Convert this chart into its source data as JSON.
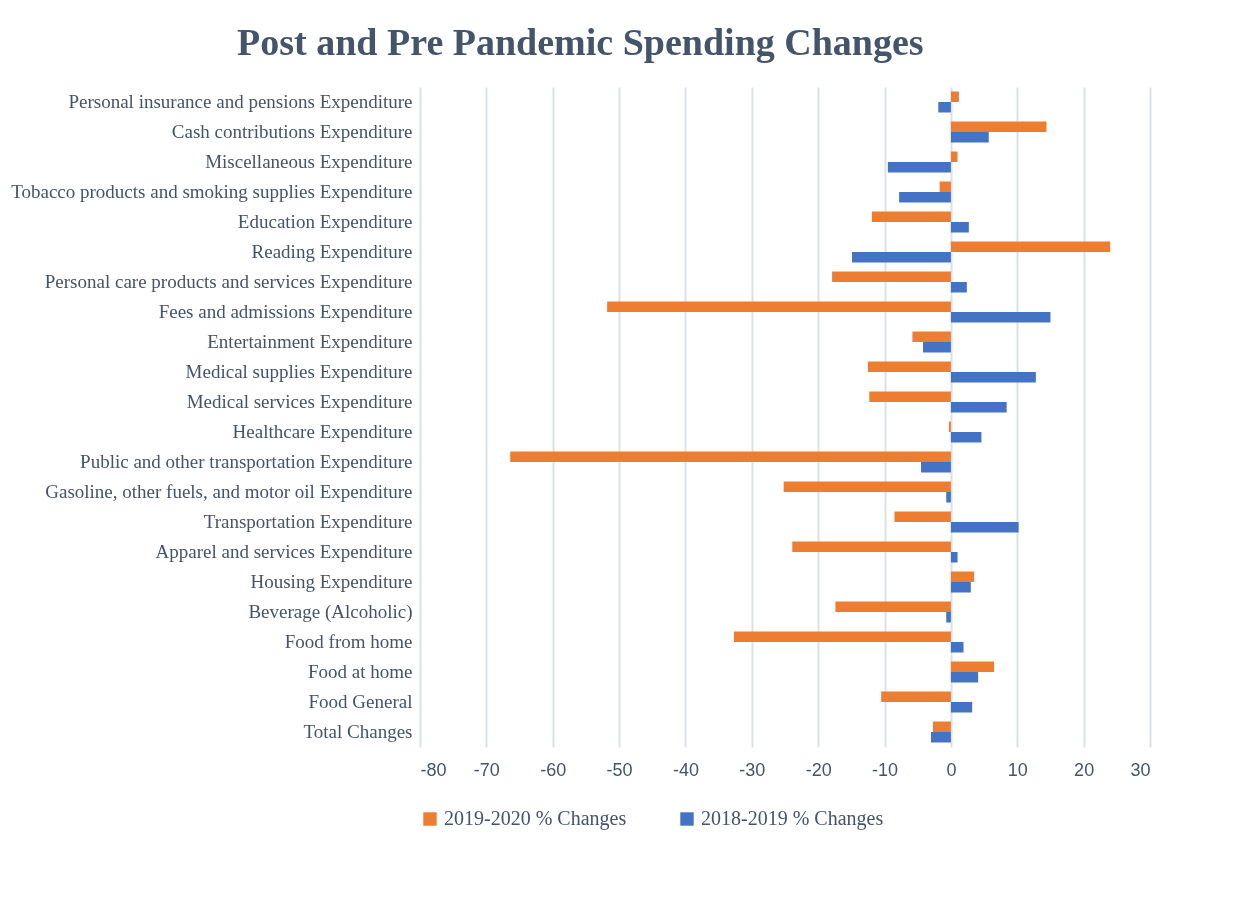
{
  "chart_data": {
    "type": "bar",
    "orientation": "horizontal",
    "title": "Post and Pre Pandemic Spending Changes",
    "categories": [
      "Personal insurance and pensions Expenditure",
      "Cash contributions Expenditure",
      "Miscellaneous Expenditure",
      "Tobacco products and smoking supplies Expenditure",
      "Education Expenditure",
      "Reading Expenditure",
      "Personal care products and services Expenditure",
      "Fees and admissions Expenditure",
      "Entertainment Expenditure",
      "Medical supplies Expenditure",
      "Medical services Expenditure",
      "Healthcare Expenditure",
      "Public and other transportation Expenditure",
      "Gasoline, other fuels, and motor oil Expenditure",
      "Transportation Expenditure",
      "Apparel and services Expenditure",
      "Housing Expenditure",
      "Beverage (Alcoholic)",
      "Food from home",
      "Food at home",
      "Food General",
      "Total Changes"
    ],
    "series": [
      {
        "name": "2019-2020 % Changes",
        "color": "#ed7d31",
        "values": [
          1.2,
          14.4,
          1.0,
          -1.7,
          -11.9,
          24.0,
          -17.9,
          -51.8,
          -5.8,
          -12.5,
          -12.3,
          -0.3,
          -66.4,
          -25.2,
          -8.5,
          -23.9,
          3.5,
          -17.4,
          -32.7,
          6.5,
          -10.5,
          -2.7
        ]
      },
      {
        "name": "2018-2019 % Changes",
        "color": "#4472c4",
        "values": [
          -1.9,
          5.7,
          -9.5,
          -7.8,
          2.7,
          -14.9,
          2.4,
          15.0,
          -4.2,
          12.8,
          8.4,
          4.6,
          -4.5,
          -0.7,
          10.2,
          1.0,
          3.0,
          -0.7,
          1.9,
          4.1,
          3.2,
          -3.0
        ]
      }
    ],
    "xlim": [
      -80,
      30
    ],
    "xticks": [
      -80,
      -70,
      -60,
      -50,
      -40,
      -30,
      -20,
      -10,
      0,
      10,
      20,
      30
    ],
    "grid": "x",
    "legend": "bottom"
  }
}
